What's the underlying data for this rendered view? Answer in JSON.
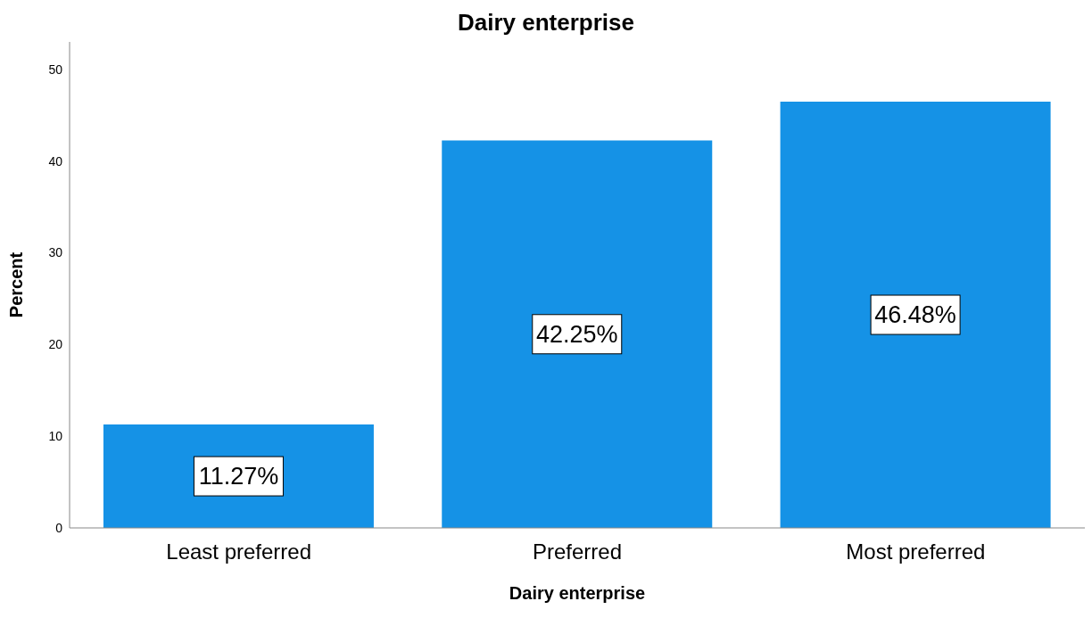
{
  "chart_data": {
    "type": "bar",
    "title": "Dairy enterprise",
    "xlabel": "Dairy enterprise",
    "ylabel": "Percent",
    "categories": [
      "Least preferred",
      "Preferred",
      "Most preferred"
    ],
    "values": [
      11.27,
      42.25,
      46.48
    ],
    "value_labels": [
      "11.27%",
      "42.25%",
      "46.48%"
    ],
    "color": "#1592e6",
    "ylim": [
      0,
      53
    ],
    "yticks": [
      0,
      10,
      20,
      30,
      40,
      50
    ],
    "grid": false,
    "legend": false
  }
}
